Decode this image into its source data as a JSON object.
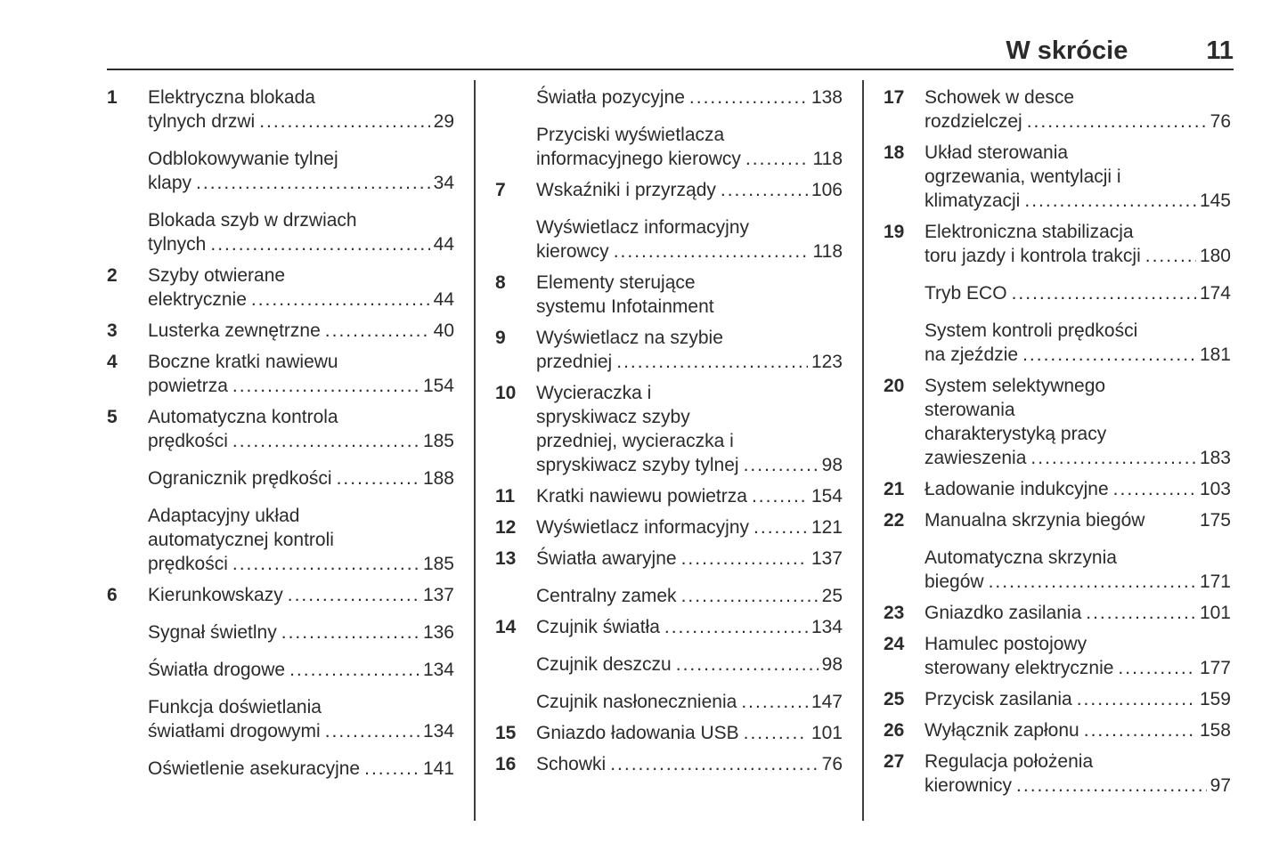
{
  "header": {
    "title": "W skrócie",
    "page_number": "11"
  },
  "columns": [
    {
      "entries": [
        {
          "number": "1",
          "lines": [
            "Elektryczna blokada",
            "tylnych drzwi"
          ],
          "page": "29"
        },
        {
          "number": null,
          "lines": [
            "Odblokowywanie tylnej",
            "klapy"
          ],
          "page": "34"
        },
        {
          "number": null,
          "lines": [
            "Blokada szyb w drzwiach",
            "tylnych"
          ],
          "page": "44"
        },
        {
          "number": "2",
          "lines": [
            "Szyby otwierane",
            "elektrycznie"
          ],
          "page": "44"
        },
        {
          "number": "3",
          "lines": [
            "Lusterka zewnętrzne"
          ],
          "page": "40"
        },
        {
          "number": "4",
          "lines": [
            "Boczne kratki nawiewu",
            "powietrza"
          ],
          "page": "154"
        },
        {
          "number": "5",
          "lines": [
            "Automatyczna kontrola",
            "prędkości "
          ],
          "page": "185"
        },
        {
          "number": null,
          "lines": [
            "Ogranicznik prędkości"
          ],
          "page": "188"
        },
        {
          "number": null,
          "lines": [
            "Adaptacyjny układ",
            "automatycznej kontroli",
            "prędkości"
          ],
          "page": "185"
        },
        {
          "number": "6",
          "lines": [
            "Kierunkowskazy"
          ],
          "page": "137"
        },
        {
          "number": null,
          "lines": [
            "Sygnał świetlny"
          ],
          "page": "136"
        },
        {
          "number": null,
          "lines": [
            "Światła drogowe"
          ],
          "page": "134"
        },
        {
          "number": null,
          "lines": [
            "Funkcja doświetlania",
            "światłami drogowymi "
          ],
          "page": "134"
        },
        {
          "number": null,
          "lines": [
            "Oświetlenie asekuracyjne "
          ],
          "page": "141"
        }
      ]
    },
    {
      "entries": [
        {
          "number": null,
          "lines": [
            "Światła pozycyjne"
          ],
          "page": "138"
        },
        {
          "number": null,
          "lines": [
            "Przyciski wyświetlacza",
            "informacyjnego kierowcy"
          ],
          "page": "118"
        },
        {
          "number": "7",
          "lines": [
            "Wskaźniki i przyrządy "
          ],
          "page": "106"
        },
        {
          "number": null,
          "lines": [
            "Wyświetlacz informacyjny",
            "kierowcy"
          ],
          "page": "118"
        },
        {
          "number": "8",
          "lines": [
            "Elementy sterujące",
            "systemu Infotainment"
          ],
          "page": null
        },
        {
          "number": "9",
          "lines": [
            "Wyświetlacz na szybie",
            "przedniej"
          ],
          "page": "123"
        },
        {
          "number": "10",
          "lines": [
            "Wycieraczka i",
            "spryskiwacz szyby",
            "przedniej, wycieraczka i",
            "spryskiwacz szyby tylnej "
          ],
          "page": "98"
        },
        {
          "number": "11",
          "lines": [
            "Kratki nawiewu powietrza "
          ],
          "page": "154"
        },
        {
          "number": "12",
          "lines": [
            "Wyświetlacz informacyjny "
          ],
          "page": "121"
        },
        {
          "number": "13",
          "lines": [
            "Światła awaryjne "
          ],
          "page": "137"
        },
        {
          "number": null,
          "lines": [
            "Centralny zamek"
          ],
          "page": "25"
        },
        {
          "number": "14",
          "lines": [
            "Czujnik światła"
          ],
          "page": "134"
        },
        {
          "number": null,
          "lines": [
            "Czujnik deszczu"
          ],
          "page": "98"
        },
        {
          "number": null,
          "lines": [
            "Czujnik nasłonecznienia"
          ],
          "page": "147"
        },
        {
          "number": "15",
          "lines": [
            "Gniazdo ładowania USB "
          ],
          "page": "101"
        },
        {
          "number": "16",
          "lines": [
            "Schowki"
          ],
          "page": "76"
        }
      ]
    },
    {
      "entries": [
        {
          "number": "17",
          "lines": [
            "Schowek w desce",
            "rozdzielczej "
          ],
          "page": "76"
        },
        {
          "number": "18",
          "lines": [
            "Układ sterowania",
            "ogrzewania, wentylacji i",
            "klimatyzacji"
          ],
          "page": "145"
        },
        {
          "number": "19",
          "lines": [
            "Elektroniczna stabilizacja",
            "toru jazdy i kontrola trakcji"
          ],
          "page": "180"
        },
        {
          "number": null,
          "lines": [
            "Tryb ECO"
          ],
          "page": "174"
        },
        {
          "number": null,
          "lines": [
            "System kontroli prędkości",
            "na zjeździe"
          ],
          "page": "181"
        },
        {
          "number": "20",
          "lines": [
            "System selektywnego",
            "sterowania",
            "charakterystyką pracy",
            "zawieszenia"
          ],
          "page": "183"
        },
        {
          "number": "21",
          "lines": [
            "Ładowanie indukcyjne"
          ],
          "page": "103"
        },
        {
          "number": "22",
          "lines": [
            "Manualna skrzynia biegów"
          ],
          "page": "175",
          "leader": false
        },
        {
          "number": null,
          "lines": [
            "Automatyczna skrzynia",
            "biegów "
          ],
          "page": "171"
        },
        {
          "number": "23",
          "lines": [
            "Gniazdko zasilania"
          ],
          "page": "101"
        },
        {
          "number": "24",
          "lines": [
            "Hamulec postojowy",
            "sterowany elektrycznie"
          ],
          "page": "177"
        },
        {
          "number": "25",
          "lines": [
            "Przycisk zasilania"
          ],
          "page": "159"
        },
        {
          "number": "26",
          "lines": [
            "Wyłącznik zapłonu"
          ],
          "page": "158"
        },
        {
          "number": "27",
          "lines": [
            "Regulacja położenia",
            "kierownicy "
          ],
          "page": "97"
        }
      ]
    }
  ]
}
